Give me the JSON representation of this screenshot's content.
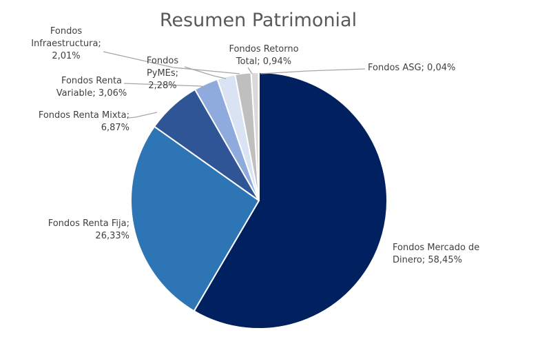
{
  "chart_data": {
    "type": "pie",
    "title": "Resumen Patrimonial",
    "legend": "none",
    "slices": [
      {
        "name": "Fondos Mercado de Dinero",
        "value": 58.45,
        "label_lines": [
          "Fondos Mercado de",
          "Dinero; 58,45%"
        ],
        "color": "#002060"
      },
      {
        "name": "Fondos Renta Fija",
        "value": 26.33,
        "label_lines": [
          "Fondos Renta Fija;",
          "26,33%"
        ],
        "color": "#2E75B6"
      },
      {
        "name": "Fondos Renta Mixta",
        "value": 6.87,
        "label_lines": [
          "Fondos Renta Mixta;",
          "6,87%"
        ],
        "color": "#2F5597"
      },
      {
        "name": "Fondos Renta Variable",
        "value": 3.06,
        "label_lines": [
          "Fondos Renta",
          "Variable; 3,06%"
        ],
        "color": "#8FAADC"
      },
      {
        "name": "Fondos PyMEs",
        "value": 2.28,
        "label_lines": [
          "Fondos",
          "PyMEs;",
          "2,28%"
        ],
        "color": "#DAE3F3"
      },
      {
        "name": "Fondos Infraestructura",
        "value": 2.01,
        "label_lines": [
          "Fondos",
          "Infraestructura;",
          "2,01%"
        ],
        "color": "#BFBFBF"
      },
      {
        "name": "Fondos Retorno Total",
        "value": 0.94,
        "label_lines": [
          "Fondos Retorno",
          "Total; 0,94%"
        ],
        "color": "#D9D9D9"
      },
      {
        "name": "Fondos ASG",
        "value": 0.04,
        "label_lines": [
          "Fondos ASG; 0,04%"
        ],
        "color": "#7F7F7F"
      }
    ]
  }
}
